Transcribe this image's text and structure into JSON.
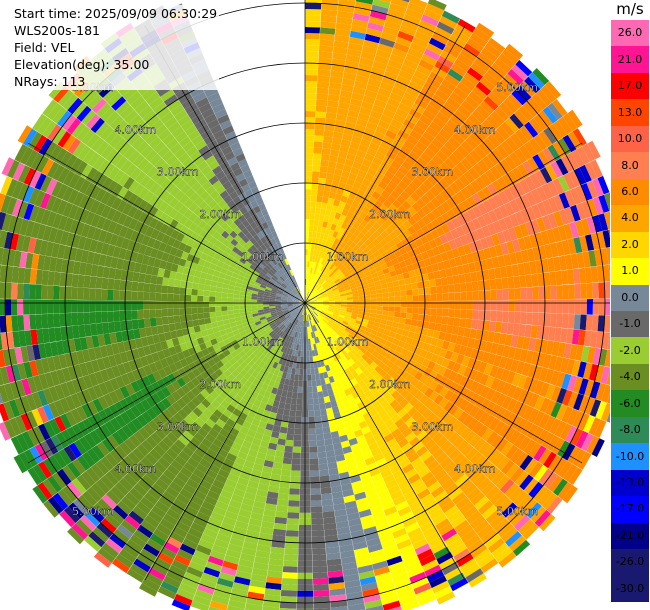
{
  "info": {
    "start_time": "Start time: 2025/09/09 06:30:29",
    "site": "WLS200s-181",
    "field": "Field: VEL",
    "elevation": "Elevation(deg): 35.00",
    "nrays": "NRays: 113"
  },
  "colorbar": {
    "unit": "m/s",
    "ticks": [
      "26.0",
      "21.0",
      "17.0",
      "13.0",
      "10.0",
      "8.0",
      "6.0",
      "4.0",
      "2.0",
      "1.0",
      "0.0",
      "-1.0",
      "-2.0",
      "-4.0",
      "-6.0",
      "-8.0",
      "-10.0",
      "-13.0",
      "-17.0",
      "-21.0",
      "-26.0",
      "-30.0"
    ],
    "colors": [
      "#ff69b4",
      "#ff1493",
      "#ff0000",
      "#ff4500",
      "#ff6347",
      "#ff7f50",
      "#ff8c00",
      "#ffa500",
      "#ffd700",
      "#ffff00",
      "#778899",
      "#696969",
      "#9acd32",
      "#6b8e23",
      "#228b22",
      "#2e8b57",
      "#1e90ff",
      "#0000cd",
      "#0000ff",
      "#00008b",
      "#191970",
      "#191970"
    ]
  },
  "chart_data": {
    "type": "heatmap",
    "title": "",
    "projection": "polar-ppi",
    "field": "VEL",
    "units": "m/s",
    "nrays": 113,
    "elevation_deg": 35.0,
    "missing_sector_deg": [
      -22,
      0
    ],
    "range_rings_km": [
      "1.00km",
      "2.00km",
      "3.00km",
      "4.00km",
      "5.00km"
    ],
    "max_range_km": 5.5,
    "spoke_angles_deg": [
      0,
      30,
      60,
      90,
      120,
      150,
      180,
      210,
      240,
      270,
      300,
      330
    ],
    "velocity_pattern": {
      "receding_max_direction_deg": 75,
      "approaching_max_direction_deg": 255,
      "speed_at_1km": 3,
      "speed_at_3km": 6,
      "noise_fraction_beyond_4_5km": 0.35
    }
  }
}
